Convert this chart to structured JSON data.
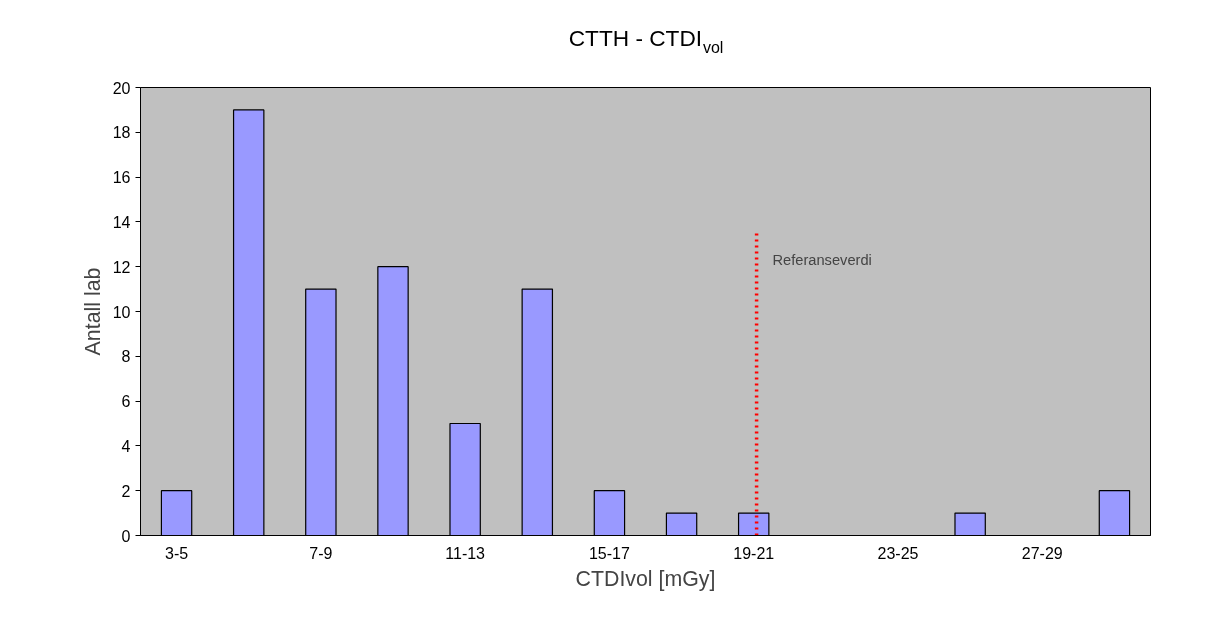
{
  "chart_data": {
    "type": "bar",
    "title": "CTTH - CTDI$_{vol}$",
    "xlabel": "CTDIvol [mGy]",
    "ylabel": "Antall lab",
    "categories": [
      "3-5",
      null,
      "7-9",
      null,
      "11-13",
      null,
      "15-17",
      null,
      "19-21",
      null,
      "23-25",
      null,
      "27-29",
      null
    ],
    "values": [
      2,
      19,
      11,
      12,
      5,
      11,
      2,
      1,
      1,
      0,
      0,
      1,
      0,
      2
    ],
    "color": "#9999ff",
    "ylim": [
      0,
      20
    ],
    "yticks": [
      0,
      2,
      4,
      6,
      8,
      10,
      12,
      14,
      16,
      18,
      20
    ],
    "grid": false,
    "ref_lines": [
      {
        "axis": "x",
        "value": "19-21",
        "label": "Referanseverdi",
        "color": "#ff0000",
        "line_style": "dotted"
      }
    ]
  }
}
